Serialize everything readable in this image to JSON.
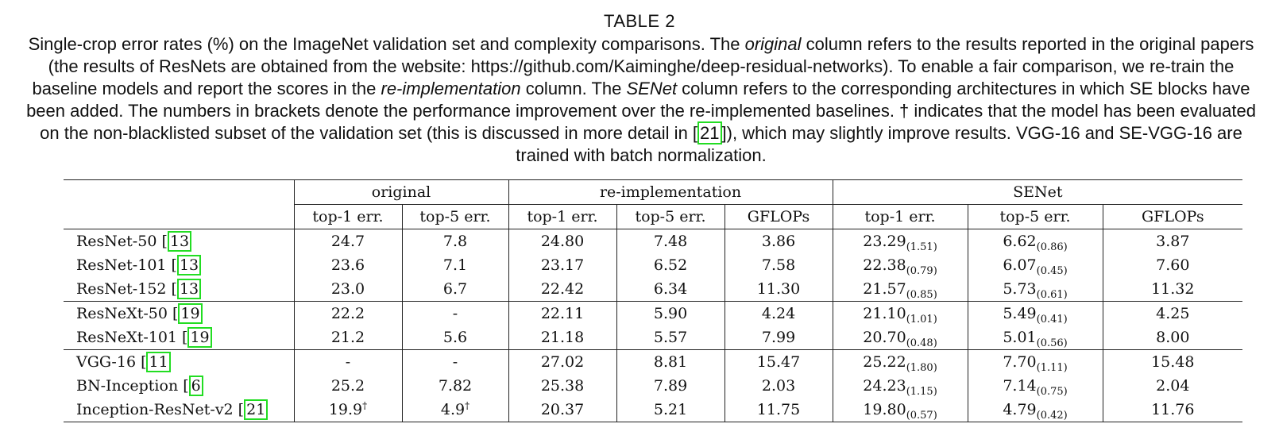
{
  "table_label": "TABLE 2",
  "caption_parts": [
    "Single-crop error rates (%) on the ImageNet validation set and complexity comparisons. The ",
    "original",
    " column refers to the results reported in the original papers (the results of ResNets are obtained from the website: https://github.com/Kaiminghe/deep-residual-networks). To enable a fair comparison, we re-train the baseline models and report the scores in the ",
    "re-implementation",
    " column. The ",
    "SENet",
    " column refers to the corresponding architectures in which SE blocks have been added. The numbers in brackets denote the performance improvement over the re-implemented baselines. † indicates that the model has been evaluated on the non-blacklisted subset of the validation set (this is discussed in more detail in [",
    "21",
    "]), which may slightly improve results. VGG-16 and SE-VGG-16 are trained with batch normalization."
  ],
  "table": {
    "group_headers": [
      "original",
      "re-implementation",
      "SENet"
    ],
    "sub_headers": [
      "top-1 err.",
      "top-5 err.",
      "top-1 err.",
      "top-5 err.",
      "GFLOPs",
      "top-1 err.",
      "top-5 err.",
      "GFLOPs"
    ],
    "rows": [
      {
        "model": "ResNet-50 [",
        "ref": "13",
        "orig_top1": "24.7",
        "orig_top5": "7.8",
        "re_top1": "24.80",
        "re_top5": "7.48",
        "re_gflops": "3.86",
        "se_top1": "23.29",
        "se_top1_gain": "(1.51)",
        "se_top5": "6.62",
        "se_top5_gain": "(0.86)",
        "se_gflops": "3.87"
      },
      {
        "model": "ResNet-101 [",
        "ref": "13",
        "orig_top1": "23.6",
        "orig_top5": "7.1",
        "re_top1": "23.17",
        "re_top5": "6.52",
        "re_gflops": "7.58",
        "se_top1": "22.38",
        "se_top1_gain": "(0.79)",
        "se_top5": "6.07",
        "se_top5_gain": "(0.45)",
        "se_gflops": "7.60"
      },
      {
        "model": "ResNet-152 [",
        "ref": "13",
        "orig_top1": "23.0",
        "orig_top5": "6.7",
        "re_top1": "22.42",
        "re_top5": "6.34",
        "re_gflops": "11.30",
        "se_top1": "21.57",
        "se_top1_gain": "(0.85)",
        "se_top5": "5.73",
        "se_top5_gain": "(0.61)",
        "se_gflops": "11.32"
      },
      {
        "model": "ResNeXt-50 [",
        "ref": "19",
        "orig_top1": "22.2",
        "orig_top5": "-",
        "re_top1": "22.11",
        "re_top5": "5.90",
        "re_gflops": "4.24",
        "se_top1": "21.10",
        "se_top1_gain": "(1.01)",
        "se_top5": "5.49",
        "se_top5_gain": "(0.41)",
        "se_gflops": "4.25"
      },
      {
        "model": "ResNeXt-101 [",
        "ref": "19",
        "orig_top1": "21.2",
        "orig_top5": "5.6",
        "re_top1": "21.18",
        "re_top5": "5.57",
        "re_gflops": "7.99",
        "se_top1": "20.70",
        "se_top1_gain": "(0.48)",
        "se_top5": "5.01",
        "se_top5_gain": "(0.56)",
        "se_gflops": "8.00"
      },
      {
        "model": "VGG-16 [",
        "ref": "11",
        "orig_top1": "-",
        "orig_top5": "-",
        "re_top1": "27.02",
        "re_top5": "8.81",
        "re_gflops": "15.47",
        "se_top1": "25.22",
        "se_top1_gain": "(1.80)",
        "se_top5": "7.70",
        "se_top5_gain": "(1.11)",
        "se_gflops": "15.48"
      },
      {
        "model": "BN-Inception [",
        "ref": "6",
        "orig_top1": "25.2",
        "orig_top5": "7.82",
        "re_top1": "25.38",
        "re_top5": "7.89",
        "re_gflops": "2.03",
        "se_top1": "24.23",
        "se_top1_gain": "(1.15)",
        "se_top5": "7.14",
        "se_top5_gain": "(0.75)",
        "se_gflops": "2.04"
      },
      {
        "model": "Inception-ResNet-v2 [",
        "ref": "21",
        "orig_top1": "19.9",
        "orig_top1_mark": "†",
        "orig_top5": "4.9",
        "orig_top5_mark": "†",
        "re_top1": "20.37",
        "re_top5": "5.21",
        "re_gflops": "11.75",
        "se_top1": "19.80",
        "se_top1_gain": "(0.57)",
        "se_top5": "4.79",
        "se_top5_gain": "(0.42)",
        "se_gflops": "11.76"
      }
    ]
  }
}
